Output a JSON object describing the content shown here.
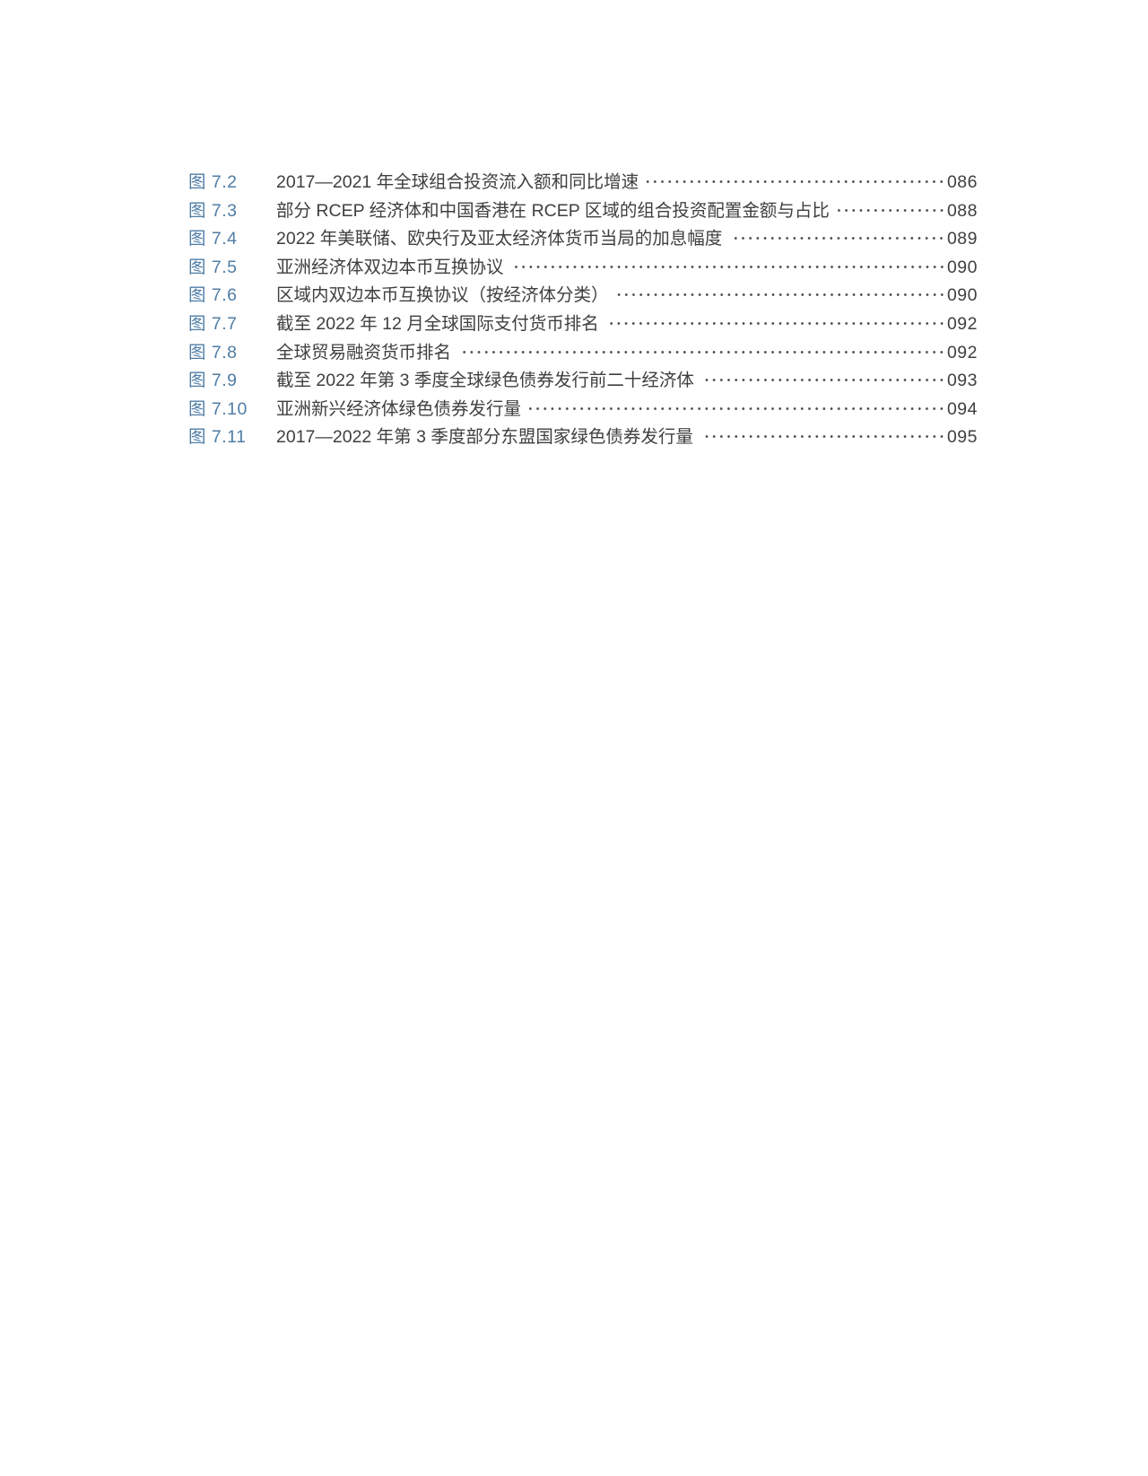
{
  "page": {
    "background": "#ffffff",
    "label_color": "#4f7da6",
    "text_color": "#3f3f3f",
    "dot_color": "#4b4b4b"
  },
  "figure_list": {
    "items": [
      {
        "label": "图 7.2",
        "title": "2017—2021 年全球组合投资流入额和同比增速",
        "page": "086"
      },
      {
        "label": "图 7.3",
        "title": "部分 RCEP 经济体和中国香港在 RCEP 区域的组合投资配置金额与占比",
        "page": "088"
      },
      {
        "label": "图 7.4",
        "title": "2022 年美联储、欧央行及亚太经济体货币当局的加息幅度",
        "page": "089"
      },
      {
        "label": "图 7.5",
        "title": "亚洲经济体双边本币互换协议",
        "page": "090"
      },
      {
        "label": "图 7.6",
        "title": "区域内双边本币互换协议（按经济体分类）",
        "page": "090"
      },
      {
        "label": "图 7.7",
        "title": "截至 2022 年 12 月全球国际支付货币排名",
        "page": "092"
      },
      {
        "label": "图 7.8",
        "title": "全球贸易融资货币排名",
        "page": "092"
      },
      {
        "label": "图 7.9",
        "title": "截至 2022 年第 3 季度全球绿色债券发行前二十经济体",
        "page": "093"
      },
      {
        "label": "图 7.10",
        "title": "亚洲新兴经济体绿色债券发行量",
        "page": "094"
      },
      {
        "label": "图 7.11",
        "title": "2017—2022 年第 3 季度部分东盟国家绿色债券发行量",
        "page": "095"
      }
    ]
  }
}
